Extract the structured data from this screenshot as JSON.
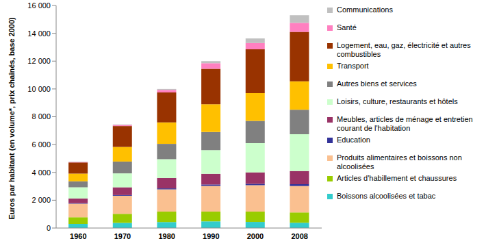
{
  "chart_data": {
    "type": "bar",
    "stacked": true,
    "grid": false,
    "legend": "right",
    "y_label": "Euros par habitant (en volume*, prix chaînés, base 2000)",
    "categories": [
      "1960",
      "1970",
      "1980",
      "1990",
      "2000",
      "2008"
    ],
    "ylim": [
      0,
      16000
    ],
    "yticks": [
      0,
      {
        "value": 2000,
        "label": "2 000"
      },
      {
        "value": 4000,
        "label": "4 000"
      },
      {
        "value": 6000,
        "label": "6 000"
      },
      {
        "value": 8000,
        "label": "8 000"
      },
      {
        "value": 10000,
        "label": "10 000"
      },
      {
        "value": 12000,
        "label": "12 000"
      },
      {
        "value": 14000,
        "label": "14 000"
      },
      {
        "value": 16000,
        "label": "16 000"
      }
    ],
    "series": [
      {
        "name": "Boissons alcoolisées et tabac",
        "color": "#33cccc",
        "values": [
          300,
          370,
          430,
          480,
          440,
          380
        ]
      },
      {
        "name": "Articles d'habillement et chaussures",
        "color": "#99cc00",
        "values": [
          480,
          650,
          750,
          700,
          740,
          740
        ]
      },
      {
        "name": "Produits alimentaires et boissons non alcoolisées",
        "color": "#fac090",
        "values": [
          970,
          1300,
          1600,
          1850,
          1900,
          1900
        ]
      },
      {
        "name": "Education",
        "color": "#333399",
        "values": [
          30,
          50,
          70,
          100,
          100,
          130
        ]
      },
      {
        "name": "Meubles, articles de ménage et entretien courant de l'habitation",
        "color": "#993366",
        "values": [
          350,
          560,
          750,
          770,
          820,
          950
        ]
      },
      {
        "name": "Loisirs, culture, restaurants et hôtels",
        "color": "#ccffcc",
        "values": [
          800,
          1000,
          1350,
          1700,
          2100,
          2650
        ]
      },
      {
        "name": "Autres biens et services",
        "color": "#808080",
        "values": [
          430,
          850,
          1100,
          1300,
          1600,
          1750
        ]
      },
      {
        "name": "Transport",
        "color": "#ffc000",
        "values": [
          550,
          1050,
          1550,
          2000,
          2000,
          2050
        ]
      },
      {
        "name": "Logement, eau, gaz, électricité et autres combustibles",
        "color": "#993300",
        "values": [
          800,
          1500,
          2150,
          2550,
          3150,
          3550
        ]
      },
      {
        "name": "Santé",
        "color": "#ff80c0",
        "values": [
          40,
          80,
          180,
          400,
          450,
          650
        ]
      },
      {
        "name": "Communications",
        "color": "#c0c0c0",
        "values": [
          20,
          40,
          70,
          150,
          330,
          550
        ]
      }
    ]
  }
}
